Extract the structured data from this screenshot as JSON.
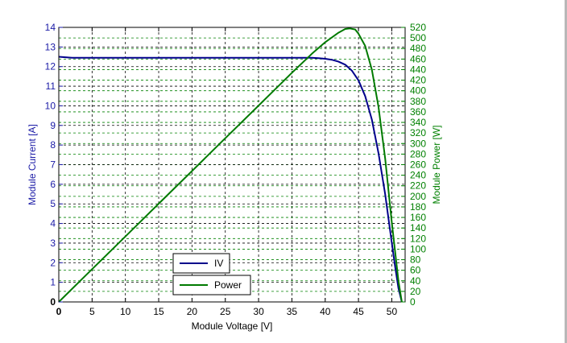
{
  "chart_data": {
    "type": "line",
    "xlabel": "Module Voltage [V]",
    "ylabel_left": "Module Current [A]",
    "ylabel_right": "Module Power [W]",
    "xlim": [
      0,
      52
    ],
    "ylim_left": [
      0,
      14
    ],
    "ylim_right": [
      0,
      520
    ],
    "x_ticks": [
      0,
      5,
      10,
      15,
      20,
      25,
      30,
      35,
      40,
      45,
      50
    ],
    "y_left_ticks": [
      0,
      1,
      2,
      3,
      4,
      5,
      6,
      7,
      8,
      9,
      10,
      11,
      12,
      13,
      14
    ],
    "y_right_ticks": [
      0,
      20,
      40,
      60,
      80,
      100,
      120,
      140,
      160,
      180,
      200,
      220,
      240,
      260,
      280,
      300,
      320,
      340,
      360,
      380,
      400,
      420,
      440,
      460,
      480,
      500,
      520
    ],
    "grid": true,
    "legend_position": "bottom-center",
    "colors": {
      "iv": "#00008b",
      "power": "#007a00",
      "left_axis": "#1a1aa6",
      "right_axis": "#008000",
      "grid": "#000000"
    },
    "series": [
      {
        "name": "IV",
        "axis": "left",
        "x": [
          0,
          2,
          5,
          10,
          15,
          20,
          25,
          30,
          34,
          36,
          37,
          38,
          39,
          40,
          41,
          42,
          43,
          44,
          45,
          46,
          47,
          48,
          49,
          50,
          50.5,
          51,
          51.5
        ],
        "y": [
          12.5,
          12.45,
          12.45,
          12.45,
          12.45,
          12.45,
          12.45,
          12.45,
          12.45,
          12.45,
          12.45,
          12.45,
          12.43,
          12.4,
          12.35,
          12.25,
          12.1,
          11.8,
          11.3,
          10.5,
          9.3,
          7.6,
          5.5,
          3.0,
          1.8,
          0.7,
          0.0
        ]
      },
      {
        "name": "Power",
        "axis": "right",
        "x": [
          0,
          5,
          10,
          15,
          20,
          25,
          30,
          35,
          38,
          40,
          42,
          43,
          43.7,
          44.5,
          45,
          46,
          47,
          48,
          49,
          50,
          50.5,
          51,
          51.5
        ],
        "y": [
          0,
          62,
          124,
          186,
          248,
          310,
          372,
          434,
          470,
          492,
          510,
          517,
          518,
          516,
          508,
          485,
          440,
          370,
          272,
          150,
          95,
          40,
          0
        ]
      }
    ]
  }
}
